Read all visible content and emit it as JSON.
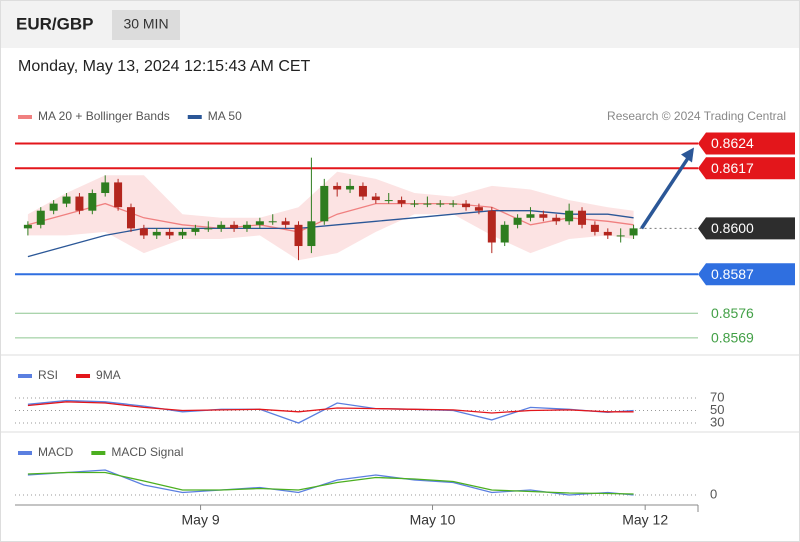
{
  "header": {
    "symbol": "EUR/GBP",
    "timeframe": "30 MIN"
  },
  "timestamp": "Monday, May 13, 2024 12:15:43 AM CET",
  "copyright": "Research © 2024 Trading Central",
  "chart_data": [
    {
      "type": "candlestick",
      "xlim": [
        -1,
        52
      ],
      "ylim": [
        0.8567,
        0.8625
      ],
      "xticks": [
        {
          "value": 13.4,
          "label": "May 9"
        },
        {
          "value": 31.4,
          "label": "May 10"
        },
        {
          "value": 47.9,
          "label": "May 12"
        }
      ],
      "up_color": "#2e7d1f",
      "down_color": "#b3261e",
      "open": [
        0.86,
        0.8601,
        0.8605,
        0.8607,
        0.8609,
        0.8605,
        0.861,
        0.8613,
        0.8606,
        0.86,
        0.8598,
        0.8599,
        0.8598,
        0.8599,
        0.86,
        0.86,
        0.8601,
        0.86,
        0.8601,
        0.8602,
        0.8602,
        0.8601,
        0.8595,
        0.8602,
        0.8612,
        0.8611,
        0.8612,
        0.8609,
        0.8608,
        0.8608,
        0.8607,
        0.8607,
        0.8607,
        0.8607,
        0.8607,
        0.8606,
        0.8605,
        0.8596,
        0.8601,
        0.8603,
        0.8604,
        0.8603,
        0.8602,
        0.8605,
        0.8601,
        0.8599,
        0.8598,
        0.8598
      ],
      "high": [
        0.8602,
        0.8606,
        0.8608,
        0.861,
        0.861,
        0.8611,
        0.8615,
        0.8614,
        0.8607,
        0.8601,
        0.86,
        0.86,
        0.86,
        0.8601,
        0.8602,
        0.8602,
        0.8602,
        0.8602,
        0.8603,
        0.8604,
        0.8603,
        0.8602,
        0.862,
        0.8614,
        0.8613,
        0.8614,
        0.8613,
        0.861,
        0.861,
        0.8609,
        0.8608,
        0.8609,
        0.8608,
        0.8608,
        0.8608,
        0.8607,
        0.8606,
        0.8602,
        0.8604,
        0.8606,
        0.8605,
        0.8604,
        0.8607,
        0.8606,
        0.8602,
        0.86,
        0.86,
        0.8601
      ],
      "low": [
        0.8598,
        0.86,
        0.8604,
        0.8606,
        0.8604,
        0.8604,
        0.8609,
        0.8605,
        0.8599,
        0.8597,
        0.8597,
        0.8597,
        0.8597,
        0.8598,
        0.8599,
        0.8599,
        0.8599,
        0.8599,
        0.86,
        0.8601,
        0.86,
        0.8591,
        0.8593,
        0.8601,
        0.8609,
        0.861,
        0.8608,
        0.8607,
        0.8607,
        0.8606,
        0.8606,
        0.8606,
        0.8606,
        0.8606,
        0.8605,
        0.8604,
        0.8593,
        0.8595,
        0.86,
        0.8602,
        0.8602,
        0.8601,
        0.8601,
        0.86,
        0.8598,
        0.8597,
        0.8596,
        0.8597
      ],
      "close": [
        0.8601,
        0.8605,
        0.8607,
        0.8609,
        0.8605,
        0.861,
        0.8613,
        0.8606,
        0.86,
        0.8598,
        0.8599,
        0.8598,
        0.8599,
        0.86,
        0.86,
        0.8601,
        0.86,
        0.8601,
        0.8602,
        0.8602,
        0.8601,
        0.8595,
        0.8602,
        0.8612,
        0.8611,
        0.8612,
        0.8609,
        0.8608,
        0.8608,
        0.8607,
        0.8607,
        0.8607,
        0.8607,
        0.8607,
        0.8606,
        0.8605,
        0.8596,
        0.8601,
        0.8603,
        0.8604,
        0.8603,
        0.8602,
        0.8605,
        0.8601,
        0.8599,
        0.8598,
        0.8598,
        0.86
      ],
      "series": [
        {
          "name": "MA 20 + Bollinger Bands",
          "color": "#f08080",
          "x": [
            0,
            3,
            6,
            9,
            12,
            15,
            18,
            21,
            24,
            27,
            30,
            33,
            36,
            39,
            42,
            45,
            47
          ],
          "values": [
            0.8601,
            0.8604,
            0.8607,
            0.8603,
            0.8601,
            0.86,
            0.8601,
            0.8599,
            0.8604,
            0.8607,
            0.8607,
            0.8607,
            0.8606,
            0.8601,
            0.8603,
            0.8602,
            0.8601
          ],
          "upper": [
            0.8604,
            0.861,
            0.8615,
            0.8615,
            0.8604,
            0.8603,
            0.8603,
            0.8606,
            0.8616,
            0.8614,
            0.861,
            0.8609,
            0.8612,
            0.8611,
            0.8608,
            0.8606,
            0.8605
          ],
          "lower": [
            0.8598,
            0.8598,
            0.8599,
            0.8593,
            0.8597,
            0.8597,
            0.8598,
            0.8591,
            0.8593,
            0.8599,
            0.8604,
            0.8604,
            0.8598,
            0.8593,
            0.8597,
            0.8598,
            0.8597
          ]
        },
        {
          "name": "MA 50",
          "color": "#2b5797",
          "x": [
            0,
            3,
            6,
            9,
            12,
            15,
            18,
            21,
            24,
            27,
            30,
            33,
            36,
            39,
            42,
            45,
            47
          ],
          "values": [
            0.8592,
            0.8595,
            0.8598,
            0.86,
            0.86,
            0.86,
            0.86,
            0.86,
            0.8601,
            0.8602,
            0.8603,
            0.8604,
            0.8605,
            0.8605,
            0.8604,
            0.8604,
            0.8603
          ]
        }
      ],
      "levels": [
        {
          "value": 0.8624,
          "color": "#e3161b",
          "kind": "tag"
        },
        {
          "value": 0.8617,
          "color": "#e3161b",
          "kind": "tag"
        },
        {
          "value": 0.86,
          "label": "0.8600",
          "color": "#2d2d2d",
          "kind": "current"
        },
        {
          "value": 0.8587,
          "color": "#2f6fe0",
          "kind": "tag"
        },
        {
          "value": 0.8576,
          "color": "#43a047",
          "kind": "text"
        },
        {
          "value": 0.8569,
          "color": "#43a047",
          "kind": "text"
        }
      ]
    },
    {
      "type": "line",
      "xlim": [
        -1,
        52
      ],
      "ylim": [
        10,
        90
      ],
      "yticks": [
        70,
        50,
        30
      ],
      "series": [
        {
          "name": "RSI",
          "color": "#5b7fe0",
          "x": [
            0,
            3,
            6,
            9,
            12,
            15,
            18,
            21,
            24,
            27,
            30,
            33,
            36,
            39,
            42,
            45,
            47
          ],
          "values": [
            60,
            66,
            64,
            57,
            48,
            52,
            52,
            30,
            62,
            53,
            52,
            50,
            35,
            55,
            52,
            47,
            50
          ]
        },
        {
          "name": "9MA",
          "color": "#e3161b",
          "x": [
            0,
            3,
            6,
            9,
            12,
            15,
            18,
            21,
            24,
            27,
            30,
            33,
            36,
            39,
            42,
            45,
            47
          ],
          "values": [
            58,
            64,
            62,
            55,
            50,
            51,
            52,
            48,
            54,
            53,
            52,
            51,
            46,
            50,
            51,
            48,
            48
          ]
        }
      ]
    },
    {
      "type": "line",
      "xlim": [
        -1,
        52
      ],
      "ylim": [
        -0.0002,
        0.0006
      ],
      "yticks": [
        0
      ],
      "series": [
        {
          "name": "MACD",
          "color": "#5b7fe0",
          "x": [
            0,
            3,
            6,
            9,
            12,
            15,
            18,
            21,
            24,
            27,
            30,
            33,
            36,
            39,
            42,
            45,
            47
          ],
          "values": [
            0.0004,
            0.00045,
            0.0005,
            0.0002,
            5e-05,
            0.0001,
            0.00015,
            5e-05,
            0.0003,
            0.0004,
            0.0003,
            0.00025,
            5e-05,
            0.0001,
            0,
            5e-05,
            0
          ]
        },
        {
          "name": "MACD Signal",
          "color": "#4caf20",
          "x": [
            0,
            3,
            6,
            9,
            12,
            15,
            18,
            21,
            24,
            27,
            30,
            33,
            36,
            39,
            42,
            45,
            47
          ],
          "values": [
            0.00042,
            0.00045,
            0.00045,
            0.00028,
            0.0001,
            0.0001,
            0.00013,
            0.0001,
            0.00025,
            0.00035,
            0.00032,
            0.00027,
            0.0001,
            7e-05,
            4e-05,
            3e-05,
            2e-05
          ]
        }
      ]
    }
  ]
}
